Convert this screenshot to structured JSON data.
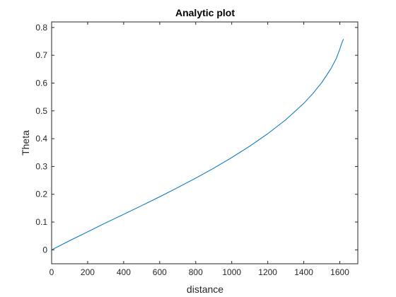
{
  "chart_data": {
    "type": "line",
    "title": "Analytic plot",
    "xlabel": "distance",
    "ylabel": "Theta",
    "xlim": [
      0,
      1700
    ],
    "ylim": [
      -0.05,
      0.82
    ],
    "xticks": [
      0,
      200,
      400,
      600,
      800,
      1000,
      1200,
      1400,
      1600
    ],
    "xtick_labels": [
      "0",
      "200",
      "400",
      "600",
      "800",
      "1000",
      "1200",
      "1400",
      "1600"
    ],
    "yticks": [
      0,
      0.1,
      0.2,
      0.3,
      0.4,
      0.5,
      0.6,
      0.7,
      0.8
    ],
    "ytick_labels": [
      "0",
      "0.1",
      "0.2",
      "0.3",
      "0.4",
      "0.5",
      "0.6",
      "0.7",
      "0.8"
    ],
    "grid": false,
    "legend": "none",
    "line_color": "#0072BD",
    "series": [
      {
        "x": [
          0,
          100,
          200,
          300,
          400,
          500,
          600,
          700,
          800,
          900,
          1000,
          1100,
          1200,
          1300,
          1400,
          1450,
          1500,
          1550,
          1580,
          1600,
          1610,
          1620
        ],
        "values": [
          0.0,
          0.033,
          0.065,
          0.097,
          0.128,
          0.159,
          0.191,
          0.224,
          0.258,
          0.294,
          0.332,
          0.373,
          0.418,
          0.468,
          0.527,
          0.562,
          0.602,
          0.651,
          0.688,
          0.722,
          0.742,
          0.758
        ]
      }
    ]
  }
}
